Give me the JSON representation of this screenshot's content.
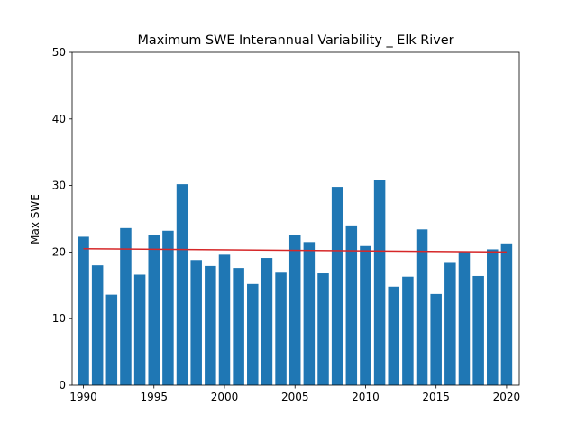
{
  "chart_data": {
    "type": "bar",
    "title": "Maximum SWE Interannual Variability _ Elk River",
    "xlabel": "",
    "ylabel": "Max SWE",
    "x": [
      1990,
      1991,
      1992,
      1993,
      1994,
      1995,
      1996,
      1997,
      1998,
      1999,
      2000,
      2001,
      2002,
      2003,
      2004,
      2005,
      2006,
      2007,
      2008,
      2009,
      2010,
      2011,
      2012,
      2013,
      2014,
      2015,
      2016,
      2017,
      2018,
      2019,
      2020
    ],
    "values": [
      22.3,
      18.0,
      13.6,
      23.6,
      16.6,
      22.6,
      23.2,
      30.2,
      18.8,
      17.9,
      19.6,
      17.6,
      15.2,
      19.1,
      16.9,
      22.5,
      21.5,
      16.8,
      29.8,
      24.0,
      20.9,
      30.8,
      14.8,
      16.3,
      23.4,
      13.7,
      18.5,
      20.0,
      16.4,
      20.4,
      21.3
    ],
    "trend": {
      "x": [
        1990,
        2020
      ],
      "y": [
        20.5,
        20.0
      ]
    },
    "xlim": [
      1989.2,
      2020.9
    ],
    "ylim": [
      0,
      50
    ],
    "xticks": [
      1990,
      1995,
      2000,
      2005,
      2010,
      2015,
      2020
    ],
    "yticks": [
      0,
      10,
      20,
      30,
      40,
      50
    ],
    "bar_color": "#1f77b4",
    "trend_color": "#d62728",
    "grid": false,
    "legend": "none"
  }
}
